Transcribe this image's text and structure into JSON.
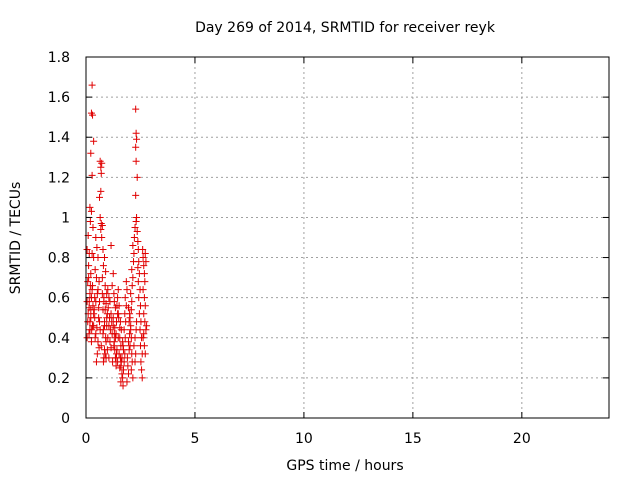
{
  "chart_data": {
    "type": "scatter",
    "title": "Day 269 of 2014, SRMTID for receiver reyk",
    "xlabel": "GPS time / hours",
    "ylabel": "SRMTID / TECUs",
    "xlim": [
      0,
      24
    ],
    "ylim": [
      0,
      1.8
    ],
    "xticks": [
      0,
      5,
      10,
      15,
      20
    ],
    "yticks": [
      0,
      0.2,
      0.4,
      0.6,
      0.8,
      1,
      1.2,
      1.4,
      1.6,
      1.8
    ],
    "xtick_labels": [
      "0",
      "5",
      "10",
      "15",
      "20"
    ],
    "ytick_labels": [
      "0",
      "0.2",
      "0.4",
      "0.6",
      "0.8",
      "1",
      "1.2",
      "1.4",
      "1.6",
      "1.8"
    ],
    "grid": true,
    "marker": "+",
    "color": "#e00000",
    "series": [
      {
        "name": "SRMTID",
        "points": [
          [
            0.28,
            1.66
          ],
          [
            0.25,
            1.52
          ],
          [
            0.3,
            1.51
          ],
          [
            0.22,
            1.32
          ],
          [
            0.35,
            1.38
          ],
          [
            0.28,
            1.21
          ],
          [
            0.18,
            1.05
          ],
          [
            0.25,
            1.03
          ],
          [
            0.2,
            0.98
          ],
          [
            0.32,
            0.95
          ],
          [
            0.1,
            0.91
          ],
          [
            0.05,
            0.84
          ],
          [
            0.15,
            0.82
          ],
          [
            0.28,
            0.82
          ],
          [
            0.35,
            0.8
          ],
          [
            0.12,
            0.76
          ],
          [
            0.22,
            0.72
          ],
          [
            0.08,
            0.68
          ],
          [
            0.3,
            0.66
          ],
          [
            0.18,
            0.62
          ],
          [
            0.25,
            0.6
          ],
          [
            0.05,
            0.58
          ],
          [
            0.14,
            0.55
          ],
          [
            0.35,
            0.52
          ],
          [
            0.22,
            0.5
          ],
          [
            0.08,
            0.48
          ],
          [
            0.3,
            0.46
          ],
          [
            0.18,
            0.44
          ],
          [
            0.05,
            0.4
          ],
          [
            0.25,
            0.38
          ],
          [
            0.45,
            0.9
          ],
          [
            0.5,
            0.85
          ],
          [
            0.55,
            0.8
          ],
          [
            0.42,
            0.74
          ],
          [
            0.48,
            0.7
          ],
          [
            0.6,
            0.68
          ],
          [
            0.52,
            0.62
          ],
          [
            0.45,
            0.58
          ],
          [
            0.58,
            0.55
          ],
          [
            0.4,
            0.5
          ],
          [
            0.62,
            0.48
          ],
          [
            0.5,
            0.45
          ],
          [
            0.45,
            0.42
          ],
          [
            0.55,
            0.38
          ],
          [
            0.48,
            0.28
          ],
          [
            0.65,
            1.28
          ],
          [
            0.68,
            1.25
          ],
          [
            0.72,
            1.27
          ],
          [
            0.7,
            1.22
          ],
          [
            0.62,
            1.1
          ],
          [
            0.68,
            1.13
          ],
          [
            0.65,
            1.0
          ],
          [
            0.7,
            0.97
          ],
          [
            0.75,
            0.96
          ],
          [
            0.68,
            0.94
          ],
          [
            0.72,
            0.9
          ],
          [
            0.78,
            0.84
          ],
          [
            0.85,
            0.8
          ],
          [
            0.8,
            0.76
          ],
          [
            0.9,
            0.73
          ],
          [
            0.75,
            0.7
          ],
          [
            0.88,
            0.66
          ],
          [
            0.95,
            0.62
          ],
          [
            0.82,
            0.6
          ],
          [
            0.92,
            0.57
          ],
          [
            0.78,
            0.54
          ],
          [
            0.98,
            0.52
          ],
          [
            0.85,
            0.48
          ],
          [
            0.95,
            0.46
          ],
          [
            0.8,
            0.44
          ],
          [
            0.9,
            0.4
          ],
          [
            0.7,
            0.36
          ],
          [
            0.85,
            0.34
          ],
          [
            0.92,
            0.3
          ],
          [
            0.8,
            0.28
          ],
          [
            1.0,
            0.64
          ],
          [
            1.05,
            0.6
          ],
          [
            1.1,
            0.58
          ],
          [
            1.02,
            0.55
          ],
          [
            1.15,
            0.52
          ],
          [
            1.08,
            0.5
          ],
          [
            1.18,
            0.48
          ],
          [
            1.05,
            0.46
          ],
          [
            1.12,
            0.44
          ],
          [
            1.2,
            0.42
          ],
          [
            1.0,
            0.4
          ],
          [
            1.1,
            0.38
          ],
          [
            1.15,
            0.35
          ],
          [
            1.05,
            0.3
          ],
          [
            1.22,
            0.28
          ],
          [
            1.15,
            0.86
          ],
          [
            1.25,
            0.72
          ],
          [
            1.2,
            0.66
          ],
          [
            1.28,
            0.62
          ],
          [
            1.3,
            0.58
          ],
          [
            1.35,
            0.55
          ],
          [
            1.25,
            0.5
          ],
          [
            1.4,
            0.48
          ],
          [
            1.32,
            0.45
          ],
          [
            1.38,
            0.42
          ],
          [
            1.3,
            0.38
          ],
          [
            1.42,
            0.34
          ],
          [
            1.35,
            0.3
          ],
          [
            1.45,
            0.28
          ],
          [
            1.38,
            0.26
          ],
          [
            1.5,
            0.5
          ],
          [
            1.55,
            0.45
          ],
          [
            1.48,
            0.4
          ],
          [
            1.6,
            0.36
          ],
          [
            1.52,
            0.32
          ],
          [
            1.58,
            0.3
          ],
          [
            1.62,
            0.28
          ],
          [
            1.55,
            0.25
          ],
          [
            1.65,
            0.22
          ],
          [
            1.6,
            0.18
          ],
          [
            1.7,
            0.16
          ],
          [
            1.68,
            0.2
          ],
          [
            1.72,
            0.24
          ],
          [
            1.75,
            0.28
          ],
          [
            1.78,
            0.32
          ],
          [
            1.7,
            0.36
          ],
          [
            1.8,
            0.4
          ],
          [
            1.75,
            0.44
          ],
          [
            1.82,
            0.48
          ],
          [
            1.78,
            0.52
          ],
          [
            1.85,
            0.56
          ],
          [
            1.8,
            0.6
          ],
          [
            1.88,
            0.64
          ],
          [
            1.85,
            0.68
          ],
          [
            1.9,
            0.3
          ],
          [
            1.92,
            0.26
          ],
          [
            1.95,
            0.22
          ],
          [
            1.88,
            0.18
          ],
          [
            1.98,
            0.34
          ],
          [
            1.95,
            0.38
          ],
          [
            2.0,
            0.42
          ],
          [
            2.05,
            0.46
          ],
          [
            2.02,
            0.5
          ],
          [
            2.08,
            0.54
          ],
          [
            2.1,
            0.58
          ],
          [
            2.05,
            0.62
          ],
          [
            2.12,
            0.66
          ],
          [
            2.15,
            0.7
          ],
          [
            2.1,
            0.74
          ],
          [
            2.18,
            0.78
          ],
          [
            2.2,
            0.82
          ],
          [
            2.15,
            0.86
          ],
          [
            2.22,
            0.9
          ],
          [
            2.25,
            0.4
          ],
          [
            2.2,
            0.36
          ],
          [
            2.28,
            0.32
          ],
          [
            2.25,
            0.28
          ],
          [
            2.3,
            0.44
          ],
          [
            2.32,
            0.48
          ],
          [
            2.28,
            1.54
          ],
          [
            2.3,
            1.42
          ],
          [
            2.32,
            1.39
          ],
          [
            2.28,
            1.35
          ],
          [
            2.3,
            1.28
          ],
          [
            2.35,
            1.2
          ],
          [
            2.28,
            1.11
          ],
          [
            2.32,
            1.0
          ],
          [
            2.3,
            0.98
          ],
          [
            2.25,
            0.95
          ],
          [
            2.35,
            0.93
          ],
          [
            2.38,
            0.88
          ],
          [
            2.4,
            0.84
          ],
          [
            2.42,
            0.78
          ],
          [
            2.38,
            0.75
          ],
          [
            2.45,
            0.72
          ],
          [
            2.4,
            0.68
          ],
          [
            2.48,
            0.64
          ],
          [
            2.42,
            0.6
          ],
          [
            2.5,
            0.56
          ],
          [
            2.45,
            0.52
          ],
          [
            2.52,
            0.48
          ],
          [
            2.48,
            0.44
          ],
          [
            2.55,
            0.4
          ],
          [
            2.5,
            0.36
          ],
          [
            2.58,
            0.32
          ],
          [
            2.52,
            0.28
          ],
          [
            2.55,
            0.24
          ],
          [
            2.58,
            0.2
          ],
          [
            2.6,
            0.84
          ],
          [
            2.62,
            0.8
          ],
          [
            2.65,
            0.76
          ],
          [
            2.68,
            0.72
          ],
          [
            2.7,
            0.68
          ],
          [
            2.72,
            0.82
          ],
          [
            2.75,
            0.78
          ],
          [
            2.62,
            0.64
          ],
          [
            2.68,
            0.6
          ],
          [
            2.72,
            0.56
          ],
          [
            2.65,
            0.52
          ],
          [
            2.7,
            0.48
          ],
          [
            2.75,
            0.44
          ],
          [
            2.62,
            0.4
          ],
          [
            2.68,
            0.36
          ],
          [
            2.72,
            0.32
          ],
          [
            2.78,
            0.46
          ],
          [
            2.65,
            0.42
          ],
          [
            0.4,
            0.6
          ],
          [
            0.55,
            0.64
          ],
          [
            0.62,
            0.58
          ],
          [
            0.38,
            0.54
          ],
          [
            0.58,
            0.5
          ],
          [
            0.35,
            0.46
          ],
          [
            0.65,
            0.44
          ],
          [
            0.42,
            0.4
          ],
          [
            0.6,
            0.35
          ],
          [
            0.52,
            0.32
          ],
          [
            1.45,
            0.6
          ],
          [
            1.52,
            0.56
          ],
          [
            1.48,
            0.52
          ],
          [
            1.58,
            0.48
          ],
          [
            1.62,
            0.44
          ],
          [
            1.55,
            0.4
          ],
          [
            1.68,
            0.38
          ],
          [
            1.72,
            0.34
          ],
          [
            1.65,
            0.3
          ],
          [
            1.6,
            0.26
          ],
          [
            1.95,
            0.55
          ],
          [
            2.0,
            0.52
          ],
          [
            1.98,
            0.48
          ],
          [
            2.05,
            0.44
          ],
          [
            2.08,
            0.4
          ],
          [
            2.02,
            0.36
          ],
          [
            2.1,
            0.32
          ],
          [
            2.12,
            0.28
          ],
          [
            2.08,
            0.24
          ],
          [
            2.15,
            0.2
          ],
          [
            0.75,
            0.62
          ],
          [
            0.82,
            0.58
          ],
          [
            0.88,
            0.54
          ],
          [
            0.95,
            0.5
          ],
          [
            0.85,
            0.46
          ],
          [
            0.78,
            0.42
          ],
          [
            0.92,
            0.38
          ],
          [
            0.98,
            0.34
          ],
          [
            0.88,
            0.32
          ],
          [
            0.82,
            0.3
          ],
          [
            1.25,
            0.46
          ],
          [
            1.3,
            0.42
          ],
          [
            1.35,
            0.4
          ],
          [
            1.28,
            0.36
          ],
          [
            1.32,
            0.34
          ],
          [
            1.4,
            0.32
          ],
          [
            1.38,
            0.3
          ],
          [
            1.42,
            0.56
          ],
          [
            1.45,
            0.52
          ],
          [
            1.48,
            0.64
          ],
          [
            0.12,
            0.7
          ],
          [
            0.2,
            0.66
          ],
          [
            0.28,
            0.64
          ],
          [
            0.15,
            0.58
          ],
          [
            0.22,
            0.54
          ],
          [
            0.32,
            0.56
          ],
          [
            0.1,
            0.52
          ],
          [
            0.18,
            0.48
          ],
          [
            0.26,
            0.44
          ],
          [
            0.14,
            0.42
          ]
        ]
      }
    ]
  }
}
